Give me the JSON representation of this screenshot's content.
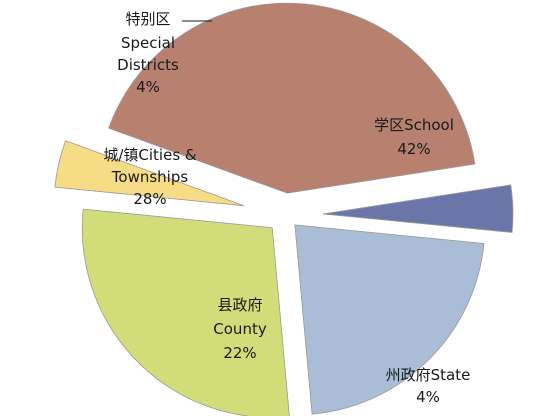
{
  "chart_data": {
    "type": "pie",
    "title": "",
    "slices": [
      {
        "name": "学区School",
        "value": 42,
        "label": "42%",
        "color": "#b8806e",
        "edge": "#8c5a4a"
      },
      {
        "name": "州政府State",
        "value": 4,
        "label": "4%",
        "color": "#6b76a8",
        "edge": "#4b557f"
      },
      {
        "name": "县政府 County",
        "name_lines": [
          "县政府",
          "County"
        ],
        "value": 22,
        "label": "22%",
        "color": "#a9bed6",
        "edge": "#7f97b2"
      },
      {
        "name": "城/镇Cities & Townships",
        "name_lines": [
          "城/镇Cities &",
          "Townships"
        ],
        "value": 28,
        "label": "28%",
        "color": "#d2dc78",
        "edge": "#a3ad4c"
      },
      {
        "name": "特别区 Special Districts",
        "name_lines": [
          "特别区",
          "Special",
          "Districts"
        ],
        "value": 4,
        "label": "4%",
        "color": "#f7dc86",
        "edge": "#cfae52"
      }
    ],
    "legend": "none",
    "labels_on_chart": true
  }
}
